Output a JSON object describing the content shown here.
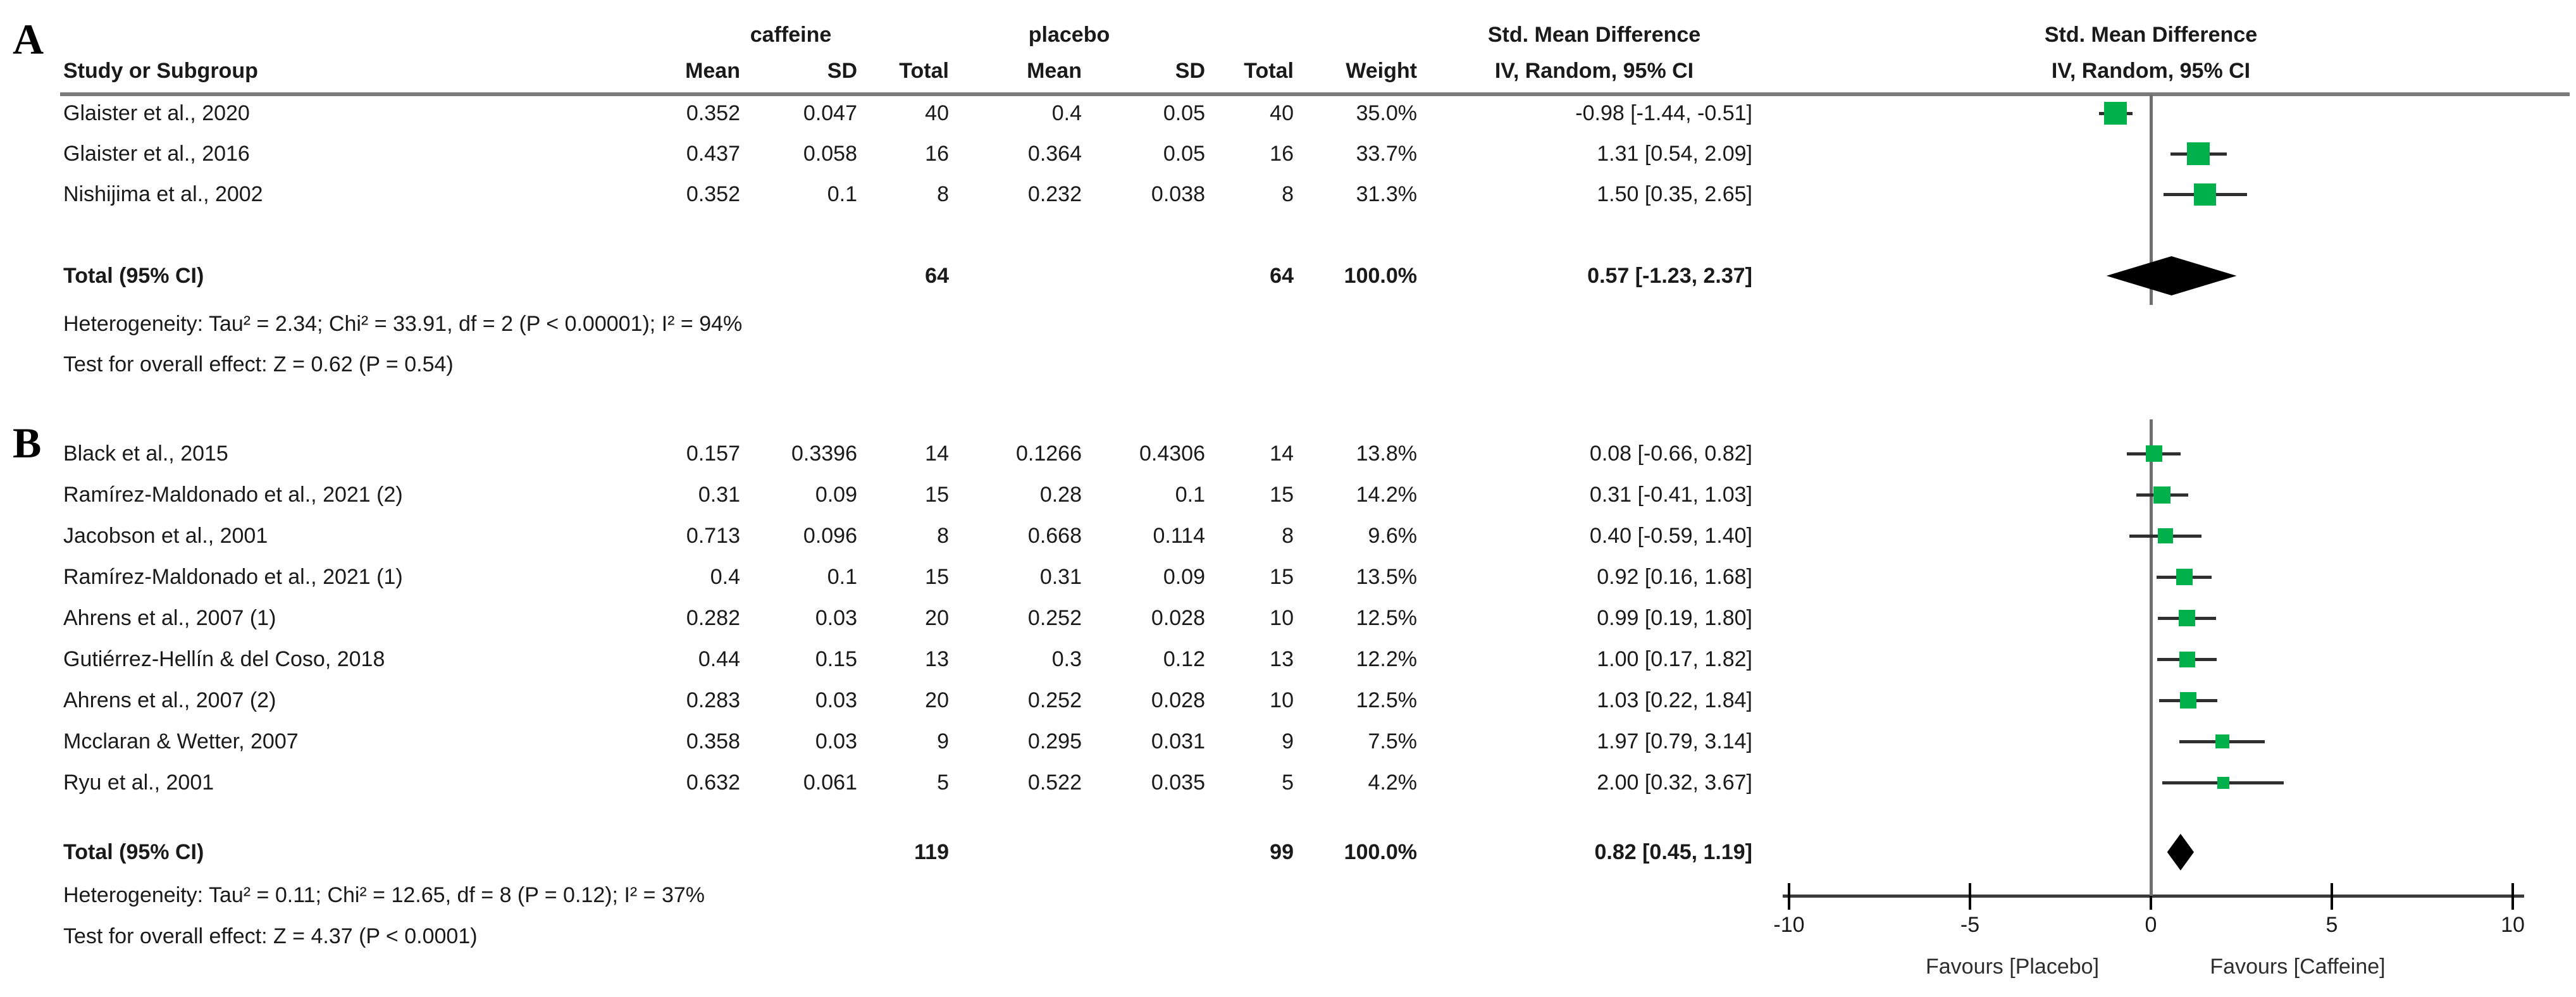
{
  "header": {
    "group_caffeine": "caffeine",
    "group_placebo": "placebo",
    "smd_title": "Std. Mean Difference",
    "smd_subtitle": "IV, Random, 95% CI",
    "plot_title": "Std. Mean Difference",
    "plot_subtitle": "IV, Random, 95% CI",
    "col_study": "Study or Subgroup",
    "col_mean": "Mean",
    "col_sd": "SD",
    "col_total": "Total",
    "col_weight": "Weight"
  },
  "axis": {
    "tick_labels": [
      "-10",
      "-5",
      "0",
      "5",
      "10"
    ],
    "favours_left": "Favours [Placebo]",
    "favours_right": "Favours [Caffeine]"
  },
  "colors": {
    "marker_green": "#00b14b",
    "diamond_black": "#000000",
    "rule_gray": "#7a7a7a"
  },
  "figure": {
    "panels": [
      {
        "label": "A",
        "studies": [
          {
            "name": "Glaister et al., 2020",
            "mean_c": "0.352",
            "sd_c": "0.047",
            "n_c": "40",
            "mean_p": "0.4",
            "sd_p": "0.05",
            "n_p": "40",
            "weight": "35.0%",
            "smd": "-0.98 [-1.44, -0.51]",
            "est": -0.98,
            "lo": -1.44,
            "hi": -0.51,
            "w": 35.0
          },
          {
            "name": "Glaister et al., 2016",
            "mean_c": "0.437",
            "sd_c": "0.058",
            "n_c": "16",
            "mean_p": "0.364",
            "sd_p": "0.05",
            "n_p": "16",
            "weight": "33.7%",
            "smd": "1.31 [0.54, 2.09]",
            "est": 1.31,
            "lo": 0.54,
            "hi": 2.09,
            "w": 33.7
          },
          {
            "name": "Nishijima et al., 2002",
            "mean_c": "0.352",
            "sd_c": "0.1",
            "n_c": "8",
            "mean_p": "0.232",
            "sd_p": "0.038",
            "n_p": "8",
            "weight": "31.3%",
            "smd": "1.50 [0.35, 2.65]",
            "est": 1.5,
            "lo": 0.35,
            "hi": 2.65,
            "w": 31.3
          }
        ],
        "total": {
          "label": "Total (95% CI)",
          "n_c": "64",
          "n_p": "64",
          "weight": "100.0%",
          "smd": "0.57 [-1.23, 2.37]",
          "est": 0.57,
          "lo": -1.23,
          "hi": 2.37
        },
        "heterogeneity": "Heterogeneity: Tau² = 2.34; Chi² = 33.91, df = 2 (P < 0.00001); I² = 94%",
        "overall_test": "Test for overall effect: Z = 0.62 (P = 0.54)"
      },
      {
        "label": "B",
        "studies": [
          {
            "name": "Black et al., 2015",
            "mean_c": "0.157",
            "sd_c": "0.3396",
            "n_c": "14",
            "mean_p": "0.1266",
            "sd_p": "0.4306",
            "n_p": "14",
            "weight": "13.8%",
            "smd": "0.08 [-0.66, 0.82]",
            "est": 0.08,
            "lo": -0.66,
            "hi": 0.82,
            "w": 13.8
          },
          {
            "name": "Ramírez-Maldonado et al., 2021 (2)",
            "mean_c": "0.31",
            "sd_c": "0.09",
            "n_c": "15",
            "mean_p": "0.28",
            "sd_p": "0.1",
            "n_p": "15",
            "weight": "14.2%",
            "smd": "0.31 [-0.41, 1.03]",
            "est": 0.31,
            "lo": -0.41,
            "hi": 1.03,
            "w": 14.2
          },
          {
            "name": "Jacobson et al., 2001",
            "mean_c": "0.713",
            "sd_c": "0.096",
            "n_c": "8",
            "mean_p": "0.668",
            "sd_p": "0.114",
            "n_p": "8",
            "weight": "9.6%",
            "smd": "0.40 [-0.59, 1.40]",
            "est": 0.4,
            "lo": -0.59,
            "hi": 1.4,
            "w": 9.6
          },
          {
            "name": "Ramírez-Maldonado et al., 2021 (1)",
            "mean_c": "0.4",
            "sd_c": "0.1",
            "n_c": "15",
            "mean_p": "0.31",
            "sd_p": "0.09",
            "n_p": "15",
            "weight": "13.5%",
            "smd": "0.92 [0.16, 1.68]",
            "est": 0.92,
            "lo": 0.16,
            "hi": 1.68,
            "w": 13.5
          },
          {
            "name": "Ahrens et al., 2007 (1)",
            "mean_c": "0.282",
            "sd_c": "0.03",
            "n_c": "20",
            "mean_p": "0.252",
            "sd_p": "0.028",
            "n_p": "10",
            "weight": "12.5%",
            "smd": "0.99 [0.19, 1.80]",
            "est": 0.99,
            "lo": 0.19,
            "hi": 1.8,
            "w": 12.5
          },
          {
            "name": "Gutiérrez-Hellín & del Coso, 2018",
            "mean_c": "0.44",
            "sd_c": "0.15",
            "n_c": "13",
            "mean_p": "0.3",
            "sd_p": "0.12",
            "n_p": "13",
            "weight": "12.2%",
            "smd": "1.00 [0.17, 1.82]",
            "est": 1.0,
            "lo": 0.17,
            "hi": 1.82,
            "w": 12.2
          },
          {
            "name": "Ahrens et al., 2007 (2)",
            "mean_c": "0.283",
            "sd_c": "0.03",
            "n_c": "20",
            "mean_p": "0.252",
            "sd_p": "0.028",
            "n_p": "10",
            "weight": "12.5%",
            "smd": "1.03 [0.22, 1.84]",
            "est": 1.03,
            "lo": 0.22,
            "hi": 1.84,
            "w": 12.5
          },
          {
            "name": "Mcclaran & Wetter, 2007",
            "mean_c": "0.358",
            "sd_c": "0.03",
            "n_c": "9",
            "mean_p": "0.295",
            "sd_p": "0.031",
            "n_p": "9",
            "weight": "7.5%",
            "smd": "1.97 [0.79, 3.14]",
            "est": 1.97,
            "lo": 0.79,
            "hi": 3.14,
            "w": 7.5
          },
          {
            "name": "Ryu et al., 2001",
            "mean_c": "0.632",
            "sd_c": "0.061",
            "n_c": "5",
            "mean_p": "0.522",
            "sd_p": "0.035",
            "n_p": "5",
            "weight": "4.2%",
            "smd": "2.00 [0.32, 3.67]",
            "est": 2.0,
            "lo": 0.32,
            "hi": 3.67,
            "w": 4.2
          }
        ],
        "total": {
          "label": "Total (95% CI)",
          "n_c": "119",
          "n_p": "99",
          "weight": "100.0%",
          "smd": "0.82 [0.45, 1.19]",
          "est": 0.82,
          "lo": 0.45,
          "hi": 1.19
        },
        "heterogeneity": "Heterogeneity: Tau² = 0.11; Chi² = 12.65, df = 8 (P = 0.12); I² = 37%",
        "overall_test": "Test for overall effect: Z = 4.37 (P < 0.0001)"
      }
    ]
  },
  "chart_data": {
    "type": "scatter",
    "subtype": "forest-plot",
    "title": "Std. Mean Difference, IV, Random, 95% CI (caffeine vs placebo)",
    "xlabel": "Std. Mean Difference",
    "xlim": [
      -10,
      10
    ],
    "x_ticks": [
      -10,
      -5,
      0,
      5,
      10
    ],
    "favours_left": "Favours [Placebo]",
    "favours_right": "Favours [Caffeine]",
    "panels": [
      {
        "label": "A",
        "studies": [
          "Glaister et al., 2020",
          "Glaister et al., 2016",
          "Nishijima et al., 2002"
        ],
        "estimates": [
          -0.98,
          1.31,
          1.5
        ],
        "ci_low": [
          -1.44,
          0.54,
          0.35
        ],
        "ci_high": [
          -0.51,
          2.09,
          2.65
        ],
        "weights_pct": [
          35.0,
          33.7,
          31.3
        ],
        "total": {
          "estimate": 0.57,
          "ci_low": -1.23,
          "ci_high": 2.37,
          "n_caffeine": 64,
          "n_placebo": 64
        },
        "heterogeneity": {
          "tau2": 2.34,
          "chi2": 33.91,
          "df": 2,
          "p": "< 0.00001",
          "i2_pct": 94
        },
        "overall_effect": {
          "z": 0.62,
          "p": "= 0.54"
        }
      },
      {
        "label": "B",
        "studies": [
          "Black et al., 2015",
          "Ramírez-Maldonado et al., 2021 (2)",
          "Jacobson et al., 2001",
          "Ramírez-Maldonado et al., 2021 (1)",
          "Ahrens et al., 2007 (1)",
          "Gutiérrez-Hellín & del Coso, 2018",
          "Ahrens et al., 2007 (2)",
          "Mcclaran & Wetter, 2007",
          "Ryu et al., 2001"
        ],
        "estimates": [
          0.08,
          0.31,
          0.4,
          0.92,
          0.99,
          1.0,
          1.03,
          1.97,
          2.0
        ],
        "ci_low": [
          -0.66,
          -0.41,
          -0.59,
          0.16,
          0.19,
          0.17,
          0.22,
          0.79,
          0.32
        ],
        "ci_high": [
          0.82,
          1.03,
          1.4,
          1.68,
          1.8,
          1.82,
          1.84,
          3.14,
          3.67
        ],
        "weights_pct": [
          13.8,
          14.2,
          9.6,
          13.5,
          12.5,
          12.2,
          12.5,
          7.5,
          4.2
        ],
        "total": {
          "estimate": 0.82,
          "ci_low": 0.45,
          "ci_high": 1.19,
          "n_caffeine": 119,
          "n_placebo": 99
        },
        "heterogeneity": {
          "tau2": 0.11,
          "chi2": 12.65,
          "df": 8,
          "p": "= 0.12",
          "i2_pct": 37
        },
        "overall_effect": {
          "z": 4.37,
          "p": "< 0.0001"
        }
      }
    ]
  }
}
